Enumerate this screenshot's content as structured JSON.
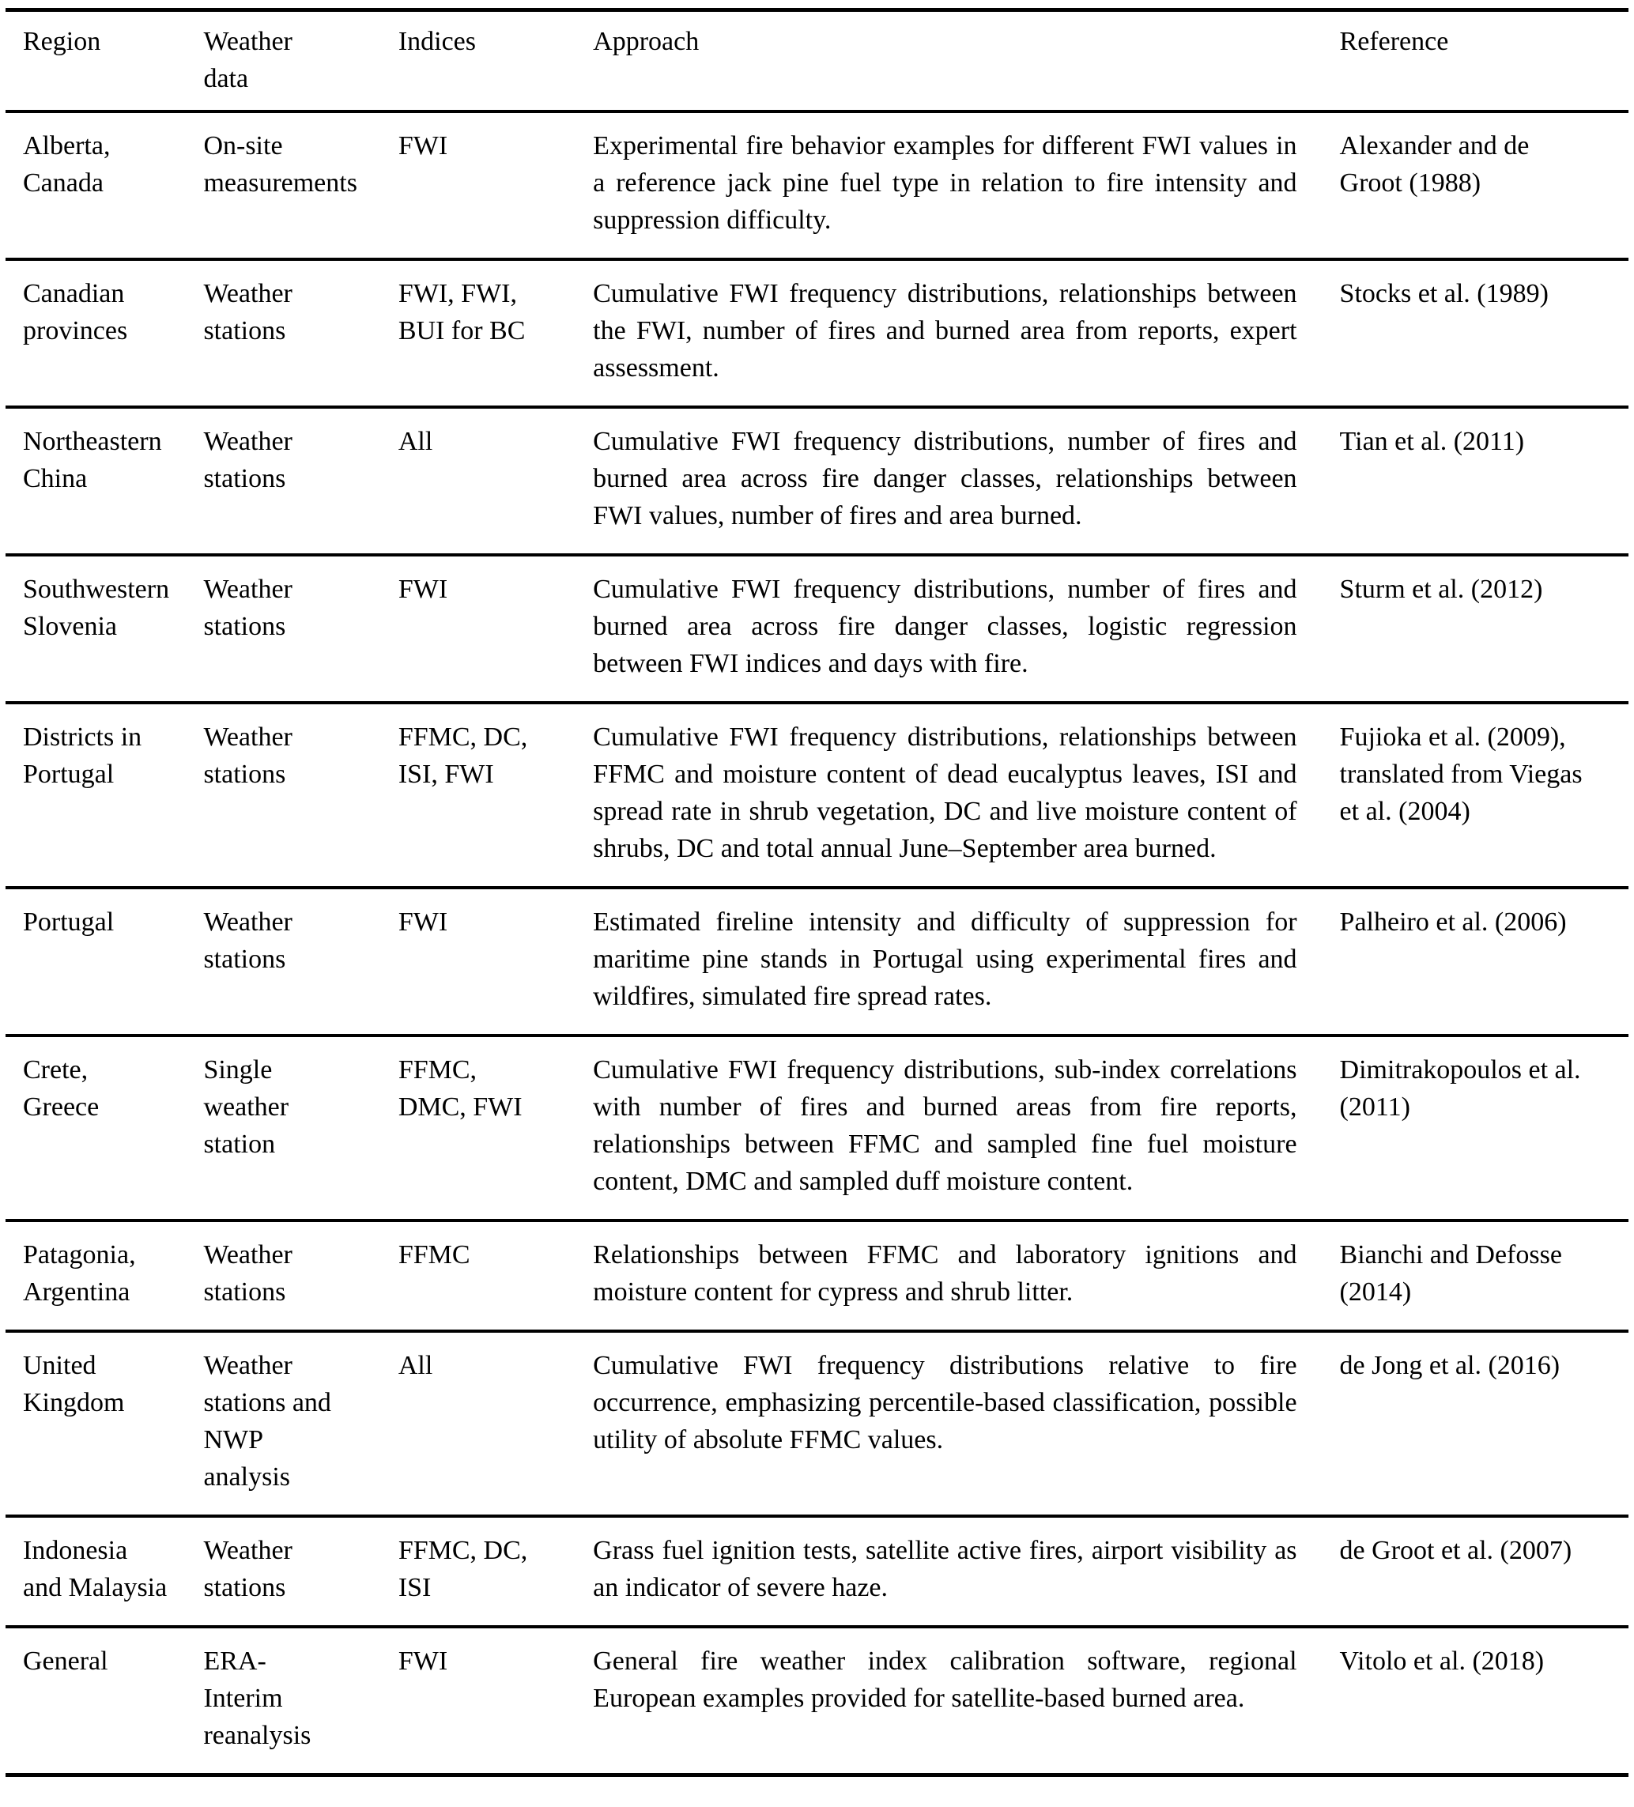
{
  "colors": {
    "text": "#000000",
    "background": "#ffffff",
    "rule": "#000000"
  },
  "table": {
    "columns": [
      "Region",
      "Weather data",
      "Indices",
      "Approach",
      "Reference"
    ],
    "rows": [
      {
        "region": "Alberta, Canada",
        "weather_data": "On-site measurements",
        "indices": "FWI",
        "approach": "Experimental fire behavior examples for different FWI values in a reference jack pine fuel type in relation to fire intensity and suppression difficulty.",
        "reference": "Alexander and de Groot (1988)"
      },
      {
        "region": "Canadian provinces",
        "weather_data": "Weather stations",
        "indices": "FWI, FWI, BUI for BC",
        "approach": "Cumulative FWI frequency distributions, relationships between the FWI, number of fires and burned area from reports, expert assessment.",
        "reference": "Stocks et al. (1989)"
      },
      {
        "region": "Northeastern China",
        "weather_data": "Weather stations",
        "indices": "All",
        "approach": "Cumulative FWI frequency distributions, number of fires and burned area across fire danger classes, relationships between FWI values, number of fires and area burned.",
        "reference": "Tian et al. (2011)"
      },
      {
        "region": "Southwestern Slovenia",
        "weather_data": "Weather stations",
        "indices": "FWI",
        "approach": "Cumulative FWI frequency distributions, number of fires and burned area across fire danger classes, logistic regression between FWI indices and days with fire.",
        "reference": "Sturm et al. (2012)"
      },
      {
        "region": "Districts in Portugal",
        "weather_data": "Weather stations",
        "indices": "FFMC, DC, ISI, FWI",
        "approach": "Cumulative FWI frequency distributions, relationships between FFMC and moisture content of dead eucalyptus leaves, ISI and spread rate in shrub vegetation, DC and live moisture content of shrubs, DC and total annual June–September area burned.",
        "reference": "Fujioka et al. (2009), translated from Viegas et al. (2004)"
      },
      {
        "region": "Portugal",
        "weather_data": "Weather stations",
        "indices": "FWI",
        "approach": "Estimated fireline intensity and difficulty of suppression for maritime pine stands in Portugal using experimental fires and wildfires, simulated fire spread rates.",
        "reference": "Palheiro et al. (2006)"
      },
      {
        "region": "Crete, Greece",
        "weather_data": "Single weather station",
        "indices": "FFMC, DMC, FWI",
        "approach": "Cumulative FWI frequency distributions, sub-index correlations with number of fires and burned areas from fire reports, relationships between FFMC and sampled fine fuel moisture content, DMC and sampled duff moisture content.",
        "reference": "Dimitrakopoulos et al. (2011)"
      },
      {
        "region": "Patagonia, Argentina",
        "weather_data": "Weather stations",
        "indices": "FFMC",
        "approach": "Relationships between FFMC and laboratory ignitions and moisture content for cypress and shrub litter.",
        "reference": "Bianchi and Defosse (2014)"
      },
      {
        "region": "United Kingdom",
        "weather_data": "Weather stations and NWP analysis",
        "indices": "All",
        "approach": "Cumulative FWI frequency distributions relative to fire occurrence, emphasizing percentile-based classification, possible utility of absolute FFMC values.",
        "reference": "de Jong et al. (2016)"
      },
      {
        "region": "Indonesia and Malaysia",
        "weather_data": "Weather stations",
        "indices": "FFMC, DC, ISI",
        "approach": "Grass fuel ignition tests, satellite active fires, airport visibility as an indicator of severe haze.",
        "reference": "de Groot et al. (2007)"
      },
      {
        "region": "General",
        "weather_data": "ERA-Interim reanalysis",
        "indices": "FWI",
        "approach": "General fire weather index calibration software, regional European examples provided for satellite-based burned area.",
        "reference": "Vitolo et al. (2018)"
      }
    ]
  }
}
